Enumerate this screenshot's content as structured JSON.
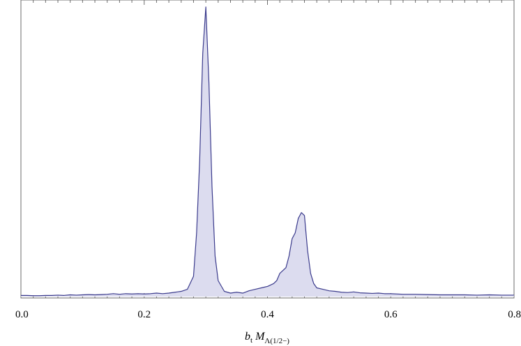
{
  "chart_data": {
    "type": "area",
    "xlabel": {
      "b_part": "b",
      "b_sub": "t",
      "m_part": "M",
      "m_sub": "Λ(1/2−)"
    },
    "ylabel": "",
    "xlim": [
      0.0,
      0.8
    ],
    "ylim": [
      0,
      1.0
    ],
    "x_ticks": [
      {
        "value": 0.0,
        "label": "0.0"
      },
      {
        "value": 0.2,
        "label": "0.2"
      },
      {
        "value": 0.4,
        "label": "0.4"
      },
      {
        "value": 0.6,
        "label": "0.6"
      },
      {
        "value": 0.8,
        "label": "0.8"
      }
    ],
    "y_ticks_labeled": false,
    "grid": false,
    "colors": {
      "line": "#3a3a8c",
      "fill": "#dcdcef",
      "frame": "#6b6b6b"
    },
    "series": [
      {
        "x": [
          0.0,
          0.01,
          0.02,
          0.03,
          0.04,
          0.05,
          0.06,
          0.07,
          0.08,
          0.09,
          0.1,
          0.11,
          0.12,
          0.13,
          0.14,
          0.15,
          0.16,
          0.17,
          0.18,
          0.19,
          0.2,
          0.21,
          0.22,
          0.23,
          0.24,
          0.25,
          0.26,
          0.27,
          0.28,
          0.285,
          0.29,
          0.295,
          0.3,
          0.305,
          0.31,
          0.315,
          0.32,
          0.33,
          0.34,
          0.35,
          0.36,
          0.37,
          0.38,
          0.39,
          0.4,
          0.41,
          0.415,
          0.42,
          0.425,
          0.43,
          0.435,
          0.44,
          0.445,
          0.45,
          0.455,
          0.46,
          0.465,
          0.47,
          0.475,
          0.48,
          0.49,
          0.5,
          0.51,
          0.52,
          0.53,
          0.54,
          0.55,
          0.56,
          0.57,
          0.58,
          0.59,
          0.6,
          0.62,
          0.64,
          0.66,
          0.68,
          0.7,
          0.72,
          0.74,
          0.76,
          0.78,
          0.8
        ],
        "values": [
          0.004,
          0.004,
          0.003,
          0.003,
          0.004,
          0.004,
          0.005,
          0.004,
          0.006,
          0.005,
          0.006,
          0.007,
          0.006,
          0.007,
          0.008,
          0.01,
          0.008,
          0.01,
          0.009,
          0.01,
          0.009,
          0.01,
          0.012,
          0.01,
          0.012,
          0.015,
          0.018,
          0.025,
          0.07,
          0.22,
          0.47,
          0.84,
          1.0,
          0.74,
          0.38,
          0.14,
          0.055,
          0.018,
          0.012,
          0.015,
          0.012,
          0.02,
          0.025,
          0.03,
          0.035,
          0.045,
          0.055,
          0.08,
          0.09,
          0.1,
          0.14,
          0.2,
          0.22,
          0.27,
          0.29,
          0.28,
          0.16,
          0.08,
          0.045,
          0.03,
          0.025,
          0.02,
          0.018,
          0.015,
          0.014,
          0.016,
          0.013,
          0.012,
          0.011,
          0.012,
          0.01,
          0.01,
          0.008,
          0.008,
          0.007,
          0.006,
          0.006,
          0.006,
          0.005,
          0.006,
          0.005,
          0.005
        ]
      }
    ]
  }
}
